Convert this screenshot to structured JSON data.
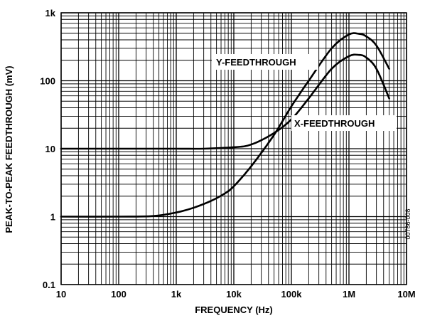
{
  "chart_data": {
    "type": "line",
    "title": "",
    "xlabel": "FREQUENCY (Hz)",
    "ylabel": "PEAK-TO-PEAK FEEDTHROUGH (mV)",
    "x_scale": "log",
    "y_scale": "log",
    "xlim": [
      10,
      10000000
    ],
    "ylim": [
      0.1,
      1000
    ],
    "grid": true,
    "x_ticks": [
      {
        "value": 10,
        "label": "10"
      },
      {
        "value": 100,
        "label": "100"
      },
      {
        "value": 1000,
        "label": "1k"
      },
      {
        "value": 10000,
        "label": "10k"
      },
      {
        "value": 100000,
        "label": "100k"
      },
      {
        "value": 1000000,
        "label": "1M"
      },
      {
        "value": 10000000,
        "label": "10M"
      }
    ],
    "y_ticks": [
      {
        "value": 0.1,
        "label": "0.1"
      },
      {
        "value": 1,
        "label": "1"
      },
      {
        "value": 10,
        "label": "10"
      },
      {
        "value": 100,
        "label": "100"
      },
      {
        "value": 1000,
        "label": "1k"
      }
    ],
    "series": [
      {
        "name": "Y-FEEDTHROUGH",
        "x": [
          10,
          100,
          1000,
          3000,
          10000,
          20000,
          50000,
          100000,
          200000,
          500000,
          1000000,
          1500000,
          2000000,
          3000000,
          5000000
        ],
        "y": [
          10,
          10,
          10,
          10,
          10.5,
          11.5,
          17,
          27,
          55,
          150,
          230,
          240,
          220,
          150,
          55
        ]
      },
      {
        "name": "X-FEEDTHROUGH",
        "x": [
          10,
          100,
          400,
          1000,
          2000,
          4000,
          7000,
          10000,
          20000,
          50000,
          100000,
          200000,
          500000,
          1000000,
          1500000,
          2000000,
          3000000,
          5000000
        ],
        "y": [
          1,
          1,
          1.02,
          1.15,
          1.35,
          1.7,
          2.2,
          2.8,
          5.5,
          16,
          42,
          100,
          300,
          480,
          490,
          450,
          330,
          150
        ]
      }
    ],
    "annotations": [
      "Y-FEEDTHROUGH",
      "X-FEEDTHROUGH"
    ],
    "figure_id": "00786-008"
  }
}
